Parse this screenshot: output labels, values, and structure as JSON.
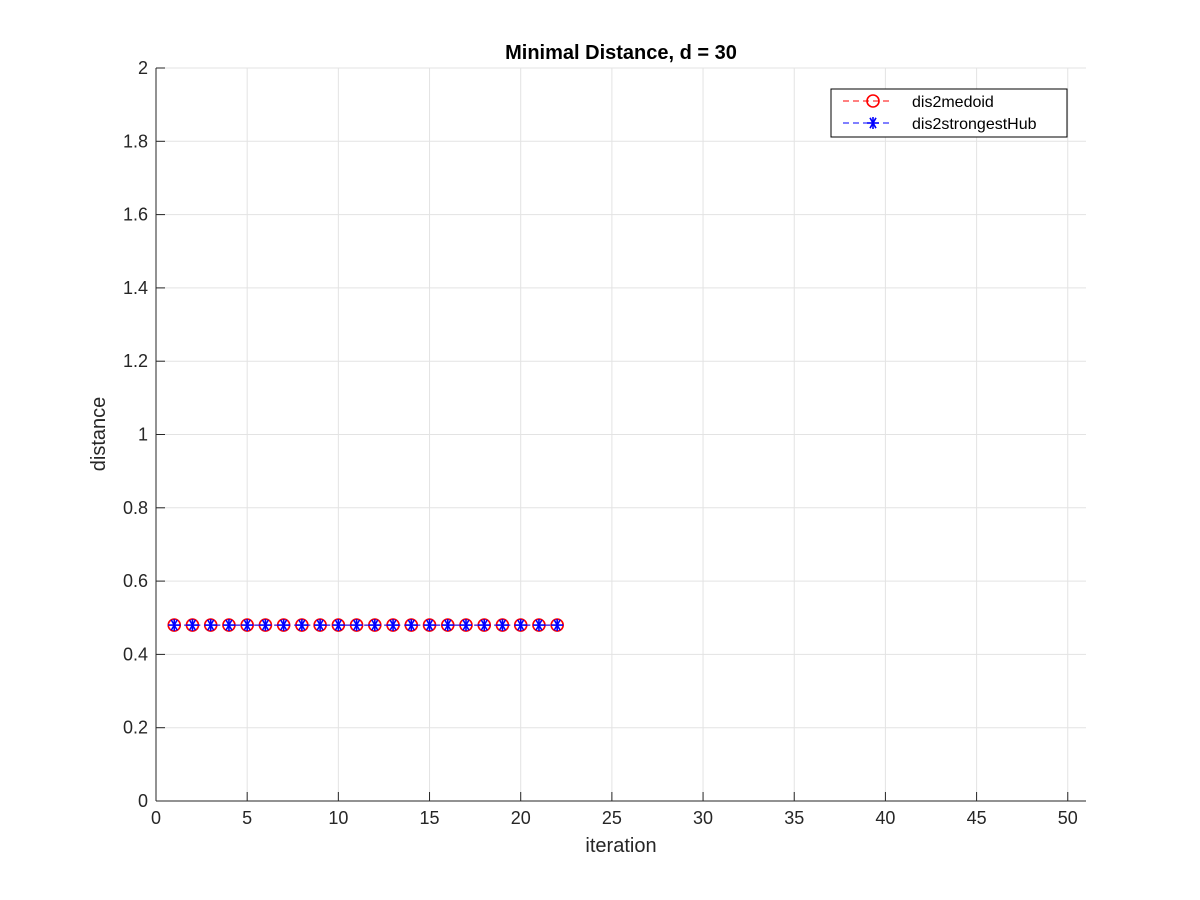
{
  "chart_data": {
    "type": "line",
    "title": "Minimal Distance, d = 30",
    "xlabel": "iteration",
    "ylabel": "distance",
    "xlim": [
      0,
      51
    ],
    "ylim": [
      0,
      2
    ],
    "xticks": [
      0,
      5,
      10,
      15,
      20,
      25,
      30,
      35,
      40,
      45,
      50
    ],
    "yticks": [
      0,
      0.2,
      0.4,
      0.6,
      0.8,
      1,
      1.2,
      1.4,
      1.6,
      1.8,
      2
    ],
    "grid": true,
    "legend_position": "top-right",
    "x": [
      1,
      2,
      3,
      4,
      5,
      6,
      7,
      8,
      9,
      10,
      11,
      12,
      13,
      14,
      15,
      16,
      17,
      18,
      19,
      20,
      21,
      22
    ],
    "series": [
      {
        "name": "dis2medoid",
        "color": "#ff0000",
        "marker": "circle",
        "line_style": "dashed",
        "values": [
          0.48,
          0.48,
          0.48,
          0.48,
          0.48,
          0.48,
          0.48,
          0.48,
          0.48,
          0.48,
          0.48,
          0.48,
          0.48,
          0.48,
          0.48,
          0.48,
          0.48,
          0.48,
          0.48,
          0.48,
          0.48,
          0.48
        ]
      },
      {
        "name": "dis2strongestHub",
        "color": "#0000ff",
        "marker": "asterisk",
        "line_style": "dashed",
        "values": [
          0.48,
          0.48,
          0.48,
          0.48,
          0.48,
          0.48,
          0.48,
          0.48,
          0.48,
          0.48,
          0.48,
          0.48,
          0.48,
          0.48,
          0.48,
          0.48,
          0.48,
          0.48,
          0.48,
          0.48,
          0.48,
          0.48
        ]
      }
    ]
  }
}
